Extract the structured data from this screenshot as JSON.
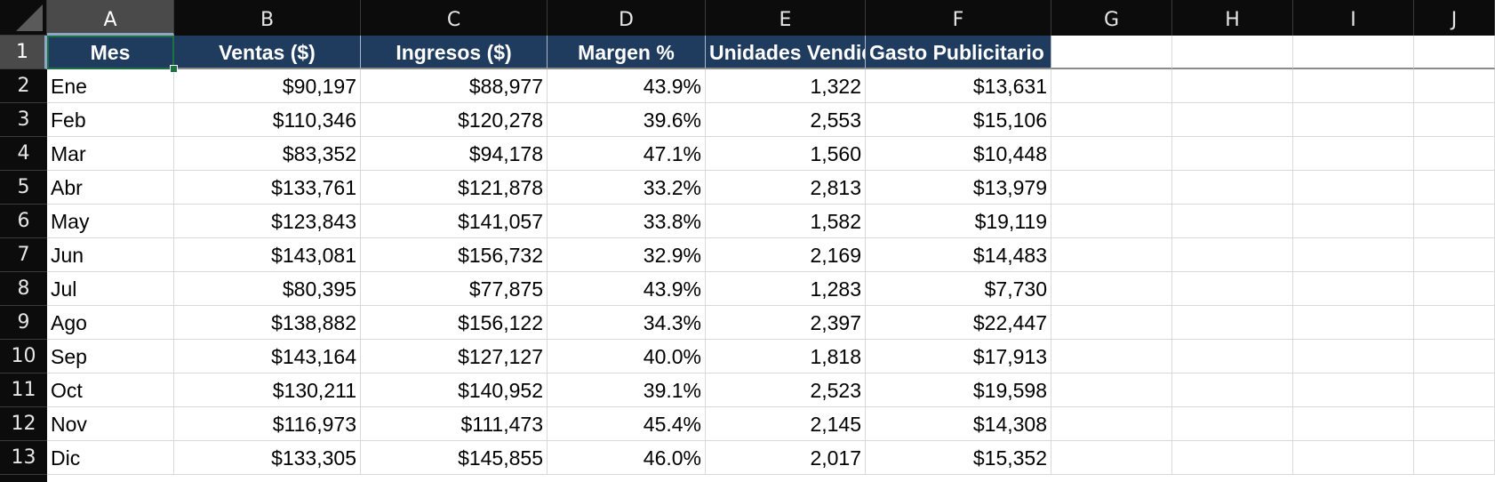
{
  "columns": [
    "A",
    "B",
    "C",
    "D",
    "E",
    "F",
    "G",
    "H",
    "I",
    "J"
  ],
  "rows": [
    "1",
    "2",
    "3",
    "4",
    "5",
    "6",
    "7",
    "8",
    "9",
    "10",
    "11",
    "12",
    "13"
  ],
  "headers": [
    "Mes",
    "Ventas ($)",
    "Ingresos ($)",
    "Margen %",
    "Unidades Vendidas",
    "Gasto Publicitario ($)"
  ],
  "table": [
    [
      "Ene",
      "$90,197",
      "$88,977",
      "43.9%",
      "1,322",
      "$13,631"
    ],
    [
      "Feb",
      "$110,346",
      "$120,278",
      "39.6%",
      "2,553",
      "$15,106"
    ],
    [
      "Mar",
      "$83,352",
      "$94,178",
      "47.1%",
      "1,560",
      "$10,448"
    ],
    [
      "Abr",
      "$133,761",
      "$121,878",
      "33.2%",
      "2,813",
      "$13,979"
    ],
    [
      "May",
      "$123,843",
      "$141,057",
      "33.8%",
      "1,582",
      "$19,119"
    ],
    [
      "Jun",
      "$143,081",
      "$156,732",
      "32.9%",
      "2,169",
      "$14,483"
    ],
    [
      "Jul",
      "$80,395",
      "$77,875",
      "43.9%",
      "1,283",
      "$7,730"
    ],
    [
      "Ago",
      "$138,882",
      "$156,122",
      "34.3%",
      "2,397",
      "$22,447"
    ],
    [
      "Sep",
      "$143,164",
      "$127,127",
      "40.0%",
      "1,818",
      "$17,913"
    ],
    [
      "Oct",
      "$130,211",
      "$140,952",
      "39.1%",
      "2,523",
      "$19,598"
    ],
    [
      "Nov",
      "$116,973",
      "$111,473",
      "45.4%",
      "2,145",
      "$14,308"
    ],
    [
      "Dic",
      "$133,305",
      "$145,855",
      "46.0%",
      "2,017",
      "$15,352"
    ]
  ],
  "selected_cell": "A1",
  "colors": {
    "header_fill": "#1f3c5f",
    "header_text": "#ffffff",
    "selection": "#1e7145",
    "chrome_bg": "#0c0c0c"
  }
}
